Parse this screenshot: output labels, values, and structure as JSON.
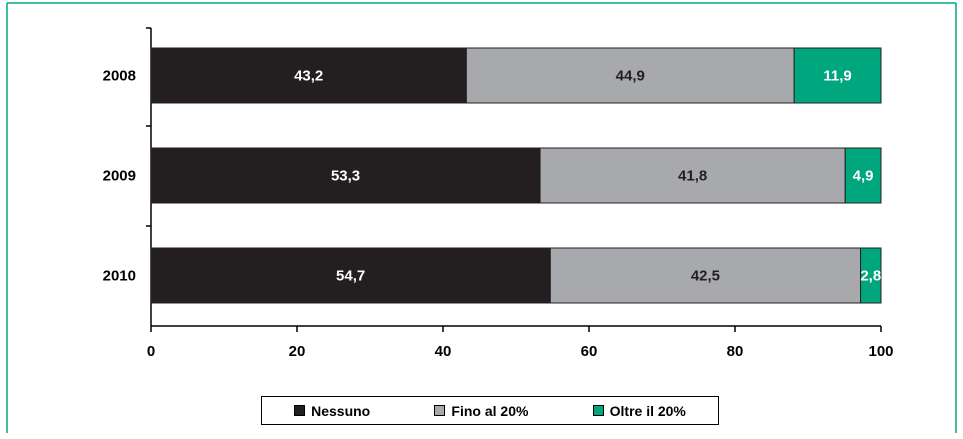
{
  "chart_data": {
    "type": "bar",
    "orientation": "horizontal",
    "stacked": true,
    "categories": [
      "2008",
      "2009",
      "2010"
    ],
    "series": [
      {
        "name": "Nessuno",
        "values": [
          43.2,
          53.3,
          54.7
        ],
        "labels": [
          "43,2",
          "53,3",
          "54,7"
        ],
        "color": "#231f20",
        "label_color": "#ffffff"
      },
      {
        "name": "Fino al 20%",
        "values": [
          44.9,
          41.8,
          42.5
        ],
        "labels": [
          "44,9",
          "41,8",
          "42,5"
        ],
        "color": "#a7a9ac",
        "label_color": "#231f20"
      },
      {
        "name": "Oltre il 20%",
        "values": [
          11.9,
          4.9,
          2.8
        ],
        "labels": [
          "11,9",
          "4,9",
          "2,8"
        ],
        "color": "#00a67e",
        "label_color": "#ffffff"
      }
    ],
    "xlim": [
      0,
      100
    ],
    "xticks": [
      "0",
      "20",
      "40",
      "60",
      "80",
      "100"
    ],
    "grid": false,
    "legend_position": "bottom",
    "frame_color": "#00a67e"
  }
}
